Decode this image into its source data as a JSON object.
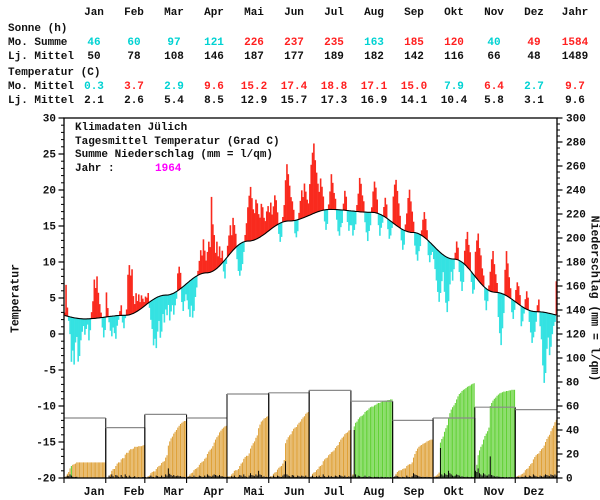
{
  "colors": {
    "above_red": "#f92a1e",
    "below_cyan": "#35e2e2",
    "table_red": "#ff1f1f",
    "table_cyan": "#00d2d2",
    "black": "#111111",
    "magenta": "#ff00ff",
    "precip_orange": "#dfa23a",
    "precip_green": "#62d136",
    "box_gray": "#8a8a8a"
  },
  "table": {
    "months": [
      "Jan",
      "Feb",
      "Mar",
      "Apr",
      "Mai",
      "Jun",
      "Jul",
      "Aug",
      "Sep",
      "Okt",
      "Nov",
      "Dez",
      "Jahr"
    ],
    "sections": [
      {
        "title": "Sonne (h)",
        "rows": [
          {
            "label": "Mo. Summe",
            "values": [
              "46",
              "60",
              "97",
              "121",
              "226",
              "237",
              "235",
              "163",
              "185",
              "120",
              "40",
              "49",
              "1584"
            ],
            "flags": [
              "c",
              "c",
              "c",
              "c",
              "r",
              "r",
              "r",
              "c",
              "r",
              "r",
              "c",
              "r",
              "r"
            ]
          },
          {
            "label": "Lj. Mittel",
            "values": [
              "50",
              "78",
              "108",
              "146",
              "187",
              "177",
              "189",
              "182",
              "142",
              "116",
              "66",
              "48",
              "1489"
            ],
            "flags": [
              "k",
              "k",
              "k",
              "k",
              "k",
              "k",
              "k",
              "k",
              "k",
              "k",
              "k",
              "k",
              "k"
            ]
          }
        ]
      },
      {
        "title": "Temperatur (C)",
        "rows": [
          {
            "label": "Mo. Mittel",
            "values": [
              "0.3",
              "3.7",
              "2.9",
              "9.6",
              "15.2",
              "17.4",
              "18.8",
              "17.1",
              "15.0",
              "7.9",
              "6.4",
              "2.7",
              "9.7"
            ],
            "flags": [
              "c",
              "r",
              "c",
              "r",
              "r",
              "r",
              "r",
              "r",
              "r",
              "c",
              "r",
              "c",
              "r"
            ]
          },
          {
            "label": "Lj. Mittel",
            "values": [
              "2.1",
              "2.6",
              "5.4",
              "8.5",
              "12.9",
              "15.7",
              "17.3",
              "16.9",
              "14.1",
              "10.4",
              "5.8",
              "3.1",
              "9.6"
            ],
            "flags": [
              "k",
              "k",
              "k",
              "k",
              "k",
              "k",
              "k",
              "k",
              "k",
              "k",
              "k",
              "k",
              "k"
            ]
          }
        ]
      }
    ]
  },
  "chart_data": {
    "type": "composite",
    "subcharts": [
      "area: daily mean temperature vs long-term mean (red above, cyan below)",
      "bar: cumulative monthly precipitation vs long-term monthly mean boxes (green above pace, orange below)",
      "bar: daily precipitation (black)"
    ],
    "title_lines": [
      "Klimadaten Jülich",
      "Tagesmittel Temperatur (Grad C)",
      "Summe Niederschlag (mm = l/qm)"
    ],
    "year_label": "Jahr :",
    "year": "1964",
    "axis_titles": {
      "left": "Temperatur",
      "right": "Niederschlag (mm = l/qm)"
    },
    "months": [
      "Jan",
      "Feb",
      "Mar",
      "Apr",
      "Mai",
      "Jun",
      "Jul",
      "Aug",
      "Sep",
      "Okt",
      "Nov",
      "Dez"
    ],
    "month_days": [
      31,
      29,
      31,
      30,
      31,
      30,
      31,
      31,
      30,
      31,
      30,
      31
    ],
    "temp_axis": {
      "min": -20,
      "max": 30,
      "major": 5,
      "minor": 1
    },
    "precip_axis": {
      "min": 0,
      "max": 300,
      "major": 20,
      "minor": 5
    },
    "lt_temp_monthly": [
      2.1,
      2.6,
      5.4,
      8.5,
      12.9,
      15.7,
      17.3,
      16.9,
      14.1,
      10.4,
      5.8,
      3.1
    ],
    "temp_monthly_1964": [
      0.3,
      3.7,
      2.9,
      9.6,
      15.2,
      17.4,
      18.8,
      17.1,
      15.0,
      7.9,
      6.4,
      2.7
    ],
    "precip_lt_monthly": [
      50,
      42,
      53,
      50,
      70,
      71,
      73,
      64,
      48,
      50,
      59,
      57
    ],
    "temp_anomaly_daily": [
      [
        0.4,
        4.3,
        1.2,
        -0.6,
        -2.4,
        -6.2,
        -4.6,
        -6.5,
        -3.4,
        -2.6,
        -6.0,
        -5.2,
        -3.0,
        -1.8,
        -1.0,
        -2.2,
        -1.4,
        -0.8,
        -3.0,
        -1.6,
        0.9,
        2.4,
        5.4,
        4.2,
        5.8,
        3.5,
        1.9,
        0.7,
        -1.4,
        -2.8,
        -1.8
      ],
      [
        3.4,
        1.2,
        -0.8,
        -2.0,
        -2.8,
        -1.6,
        -2.4,
        -3.2,
        -1.4,
        -0.6,
        0.6,
        1.4,
        -1.0,
        -1.8,
        -0.4,
        0.8,
        5.6,
        6.9,
        5.4,
        6.2,
        2.4,
        1.2,
        2.6,
        1.4,
        2.2,
        1.0,
        1.8,
        1.2,
        0.6
      ],
      [
        1.2,
        0.9,
        1.4,
        -0.8,
        -2.6,
        -4.0,
        -6.4,
        -5.6,
        -7.0,
        -4.8,
        -3.4,
        -5.8,
        -5.0,
        -2.6,
        -3.8,
        -2.0,
        -2.8,
        -1.4,
        -3.6,
        -2.4,
        -1.6,
        -3.0,
        -1.8,
        -1.0,
        2.4,
        3.2,
        2.2,
        -2.0,
        -3.4,
        -2.2,
        -1.4
      ],
      [
        -2.4,
        -3.8,
        -5.0,
        -3.6,
        -5.4,
        -4.6,
        -2.8,
        -1.6,
        0.6,
        1.9,
        3.3,
        2.5,
        4.7,
        3.1,
        1.7,
        2.9,
        4.3,
        3.5,
        10.4,
        6.5,
        4.9,
        2.3,
        3.7,
        1.5,
        2.7,
        0.9,
        1.7,
        -1.4,
        -2.6,
        -0.8
      ],
      [
        1.5,
        2.7,
        3.9,
        2.3,
        4.5,
        3.3,
        1.9,
        -1.8,
        -3.6,
        -4.4,
        -3.8,
        -3.0,
        -1.4,
        0.9,
        2.5,
        4.7,
        6.3,
        7.5,
        5.9,
        4.3,
        3.7,
        5.5,
        4.9,
        3.3,
        2.7,
        4.5,
        3.9,
        2.3,
        1.7,
        2.9,
        3.5
      ],
      [
        2.5,
        3.7,
        1.9,
        2.9,
        4.3,
        3.5,
        1.7,
        -1.4,
        -2.6,
        -2.0,
        0.7,
        2.3,
        5.7,
        7.9,
        6.5,
        4.9,
        3.3,
        2.7,
        1.5,
        -1.8,
        -2.4,
        -1.6,
        0.9,
        2.5,
        3.9,
        2.9,
        4.7,
        3.5,
        2.3,
        1.7
      ],
      [
        4.3,
        6.9,
        8.5,
        9.7,
        7.3,
        5.5,
        3.9,
        2.7,
        4.5,
        3.3,
        1.9,
        -1.6,
        -2.8,
        -2.0,
        0.7,
        2.5,
        4.9,
        3.7,
        2.3,
        1.5,
        -1.4,
        -3.0,
        -3.6,
        -2.4,
        -1.8,
        0.9,
        2.7,
        1.9,
        -1.6,
        -2.8,
        -2.0
      ],
      [
        -2.0,
        -3.4,
        -2.6,
        -1.8,
        0.9,
        2.5,
        4.7,
        3.9,
        2.3,
        1.5,
        -1.4,
        -2.8,
        -4.0,
        -2.6,
        -1.8,
        0.7,
        2.9,
        4.3,
        3.5,
        1.9,
        -1.6,
        -3.0,
        -1.8,
        -1.0,
        1.3,
        2.7,
        1.9,
        -1.4,
        -2.6,
        -2.0,
        -0.8
      ],
      [
        3.7,
        5.5,
        6.3,
        4.9,
        3.3,
        1.7,
        -1.6,
        -2.8,
        -2.0,
        0.9,
        2.5,
        4.7,
        5.9,
        4.3,
        2.9,
        1.5,
        -1.8,
        -3.0,
        -3.8,
        -2.4,
        -1.6,
        0.7,
        2.3,
        3.5,
        2.7,
        1.3,
        -2.0,
        -2.8,
        -1.6,
        -1.0
      ],
      [
        -1.8,
        -3.0,
        -4.4,
        -5.8,
        -7.0,
        -5.6,
        -3.8,
        -2.4,
        -5.0,
        -6.4,
        -7.6,
        -6.0,
        -3.6,
        -1.8,
        -3.0,
        -1.4,
        0.9,
        2.5,
        1.7,
        -1.6,
        -2.8,
        -4.0,
        -2.6,
        1.9,
        3.7,
        4.9,
        3.3,
        2.5,
        -1.4,
        -2.8,
        -2.0
      ],
      [
        3.5,
        5.3,
        6.5,
        4.7,
        3.9,
        2.3,
        1.5,
        -1.8,
        -3.0,
        -1.6,
        0.7,
        2.7,
        4.5,
        5.7,
        3.9,
        2.5,
        1.3,
        -3.4,
        -5.6,
        -7.2,
        -4.8,
        -2.6,
        3.5,
        6.2,
        4.6,
        2.8,
        1.4,
        -1.8,
        -2.6,
        -1.2
      ],
      [
        1.7,
        2.9,
        2.5,
        1.4,
        -2.8,
        -2.0,
        -0.8,
        1.3,
        2.5,
        1.7,
        -1.6,
        -3.0,
        -4.4,
        -3.6,
        -2.8,
        -1.4,
        0.9,
        1.7,
        -2.0,
        -3.8,
        -7.4,
        -9.8,
        -8.4,
        -5.0,
        -3.4,
        -5.8,
        -4.6,
        -2.8,
        -1.6,
        -1.0,
        4.7
      ]
    ],
    "precip_daily": [
      [
        0.5,
        1,
        2,
        1.5,
        3,
        2,
        1,
        0.5,
        0.5,
        1,
        0,
        0,
        0,
        0,
        0,
        0,
        0,
        0,
        0,
        0,
        0,
        0,
        0,
        0,
        0,
        0,
        0,
        0,
        0,
        0,
        0
      ],
      [
        0,
        0,
        2,
        1,
        3,
        1.5,
        0,
        2.5,
        2,
        1,
        0,
        2.5,
        1,
        0,
        3,
        1.5,
        0,
        2,
        1,
        0,
        0.5,
        1.5,
        0,
        0,
        0.5,
        0,
        0,
        0.5,
        0.5
      ],
      [
        0.5,
        0,
        1,
        0.5,
        2,
        1,
        0.5,
        0,
        2,
        1.5,
        1,
        0.5,
        2,
        1,
        0.5,
        3,
        2,
        8,
        3.5,
        2.5,
        1.5,
        2.5,
        1.5,
        1.5,
        2,
        1.5,
        1.5,
        1,
        1,
        0.5,
        0
      ],
      [
        1,
        0.5,
        1.5,
        1,
        0.5,
        2,
        1,
        0.5,
        1,
        2,
        1.5,
        1,
        0.5,
        2,
        1,
        3,
        2,
        1.5,
        1,
        2,
        3,
        2.5,
        2,
        1.5,
        2.5,
        1.5,
        1.5,
        1,
        1,
        0.5
      ],
      [
        1,
        0.5,
        0,
        1.5,
        1,
        2,
        0.5,
        0,
        1,
        2.5,
        2,
        1,
        3,
        1.5,
        1,
        0,
        2,
        4,
        2.5,
        2,
        1.5,
        3,
        2,
        6,
        3,
        2.5,
        1,
        1.5,
        0.5,
        1,
        0.5
      ],
      [
        0.5,
        1,
        0,
        2,
        1,
        0.5,
        2,
        1.5,
        1,
        0.5,
        2,
        3,
        14,
        3,
        2,
        1.5,
        1,
        2.5,
        2,
        1,
        0.5,
        2,
        1.5,
        1,
        2,
        1.5,
        1,
        2,
        1,
        0.5
      ],
      [
        0.5,
        1,
        2,
        1,
        0.5,
        1.5,
        1,
        2,
        0.5,
        1,
        3,
        1.5,
        1,
        0.5,
        2,
        1,
        1.5,
        0.5,
        1,
        2,
        1.5,
        1,
        2.5,
        2,
        1.5,
        1,
        2,
        1,
        0.5,
        1.5,
        0.5
      ],
      [
        1,
        2,
        40,
        3,
        1,
        2,
        1.5,
        1,
        0.5,
        1,
        2,
        1,
        0.5,
        1.5,
        1,
        0.5,
        0,
        1,
        0.5,
        1,
        0.5,
        0,
        1,
        0.5,
        0,
        0.5,
        0,
        0.5,
        0,
        0.5,
        0
      ],
      [
        0.5,
        1,
        2,
        1.5,
        1,
        0.5,
        0,
        1,
        0.5,
        0,
        2,
        1,
        0.5,
        0,
        1.5,
        4,
        3,
        2.5,
        2,
        1.5,
        1,
        0.5,
        1,
        0.5,
        0.5,
        1,
        0.5,
        0.5,
        0.5,
        0
      ],
      [
        0.5,
        1,
        0.5,
        1,
        1.5,
        25,
        3,
        2,
        4,
        3,
        2.5,
        6,
        4,
        3,
        2,
        1.5,
        2,
        3,
        2.5,
        2,
        1,
        1.5,
        1,
        0.5,
        1,
        1,
        0.5,
        0.5,
        1,
        0.5,
        0.5
      ],
      [
        6,
        5,
        8,
        4,
        3,
        2,
        4,
        3,
        2,
        2,
        3,
        18,
        2.5,
        2,
        1.5,
        1,
        1.5,
        1,
        1,
        0.5,
        0.5,
        0.5,
        0,
        0.5,
        0,
        0.5,
        0,
        0.5,
        0,
        0
      ],
      [
        0.5,
        1,
        0.5,
        0,
        1,
        0.5,
        1,
        2,
        1,
        0.5,
        2,
        1.5,
        1,
        3,
        2,
        1.5,
        1,
        0.5,
        2,
        1.5,
        1,
        2,
        3,
        2.5,
        2,
        1.5,
        3,
        2.5,
        2,
        3,
        2
      ]
    ]
  }
}
